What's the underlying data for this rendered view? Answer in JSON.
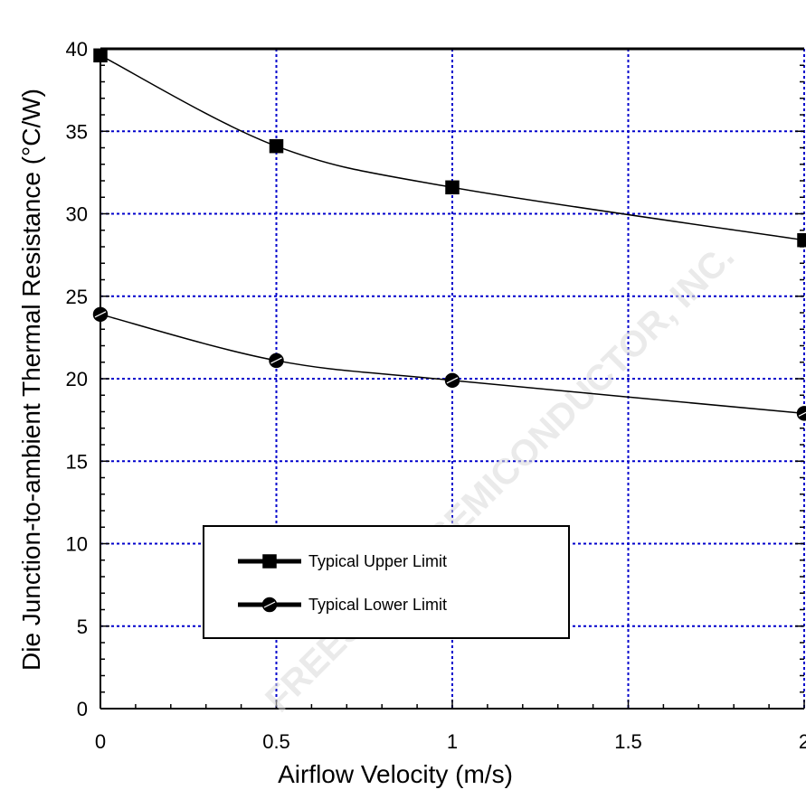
{
  "chart_data": {
    "type": "line",
    "xlabel": "Airflow Velocity (m/s)",
    "ylabel": "Die Junction-to-ambient Thermal Resistance (°C/W)",
    "xlim": [
      0,
      2
    ],
    "ylim": [
      0,
      40
    ],
    "x_ticks": [
      0,
      0.5,
      1,
      1.5,
      2
    ],
    "x_tick_labels": [
      "0",
      "0.5",
      "1",
      "1.5",
      "2"
    ],
    "y_ticks": [
      0,
      5,
      10,
      15,
      20,
      25,
      30,
      35,
      40
    ],
    "y_tick_labels": [
      "0",
      "5",
      "10",
      "15",
      "20",
      "25",
      "30",
      "35",
      "40"
    ],
    "grid": true,
    "grid_color": "#0000cc",
    "legend_position": "lower-left",
    "series": [
      {
        "name": "Typical Upper Limit",
        "marker": "square",
        "color": "#000000",
        "x": [
          0,
          0.5,
          1,
          2
        ],
        "y": [
          39.6,
          34.1,
          31.6,
          28.4
        ]
      },
      {
        "name": "Typical Lower Limit",
        "marker": "circle",
        "color": "#000000",
        "x": [
          0,
          0.5,
          1,
          2
        ],
        "y": [
          23.9,
          21.1,
          19.9,
          17.9
        ]
      }
    ]
  },
  "watermark": "FREESCALE SEMICONDUCTOR, INC."
}
